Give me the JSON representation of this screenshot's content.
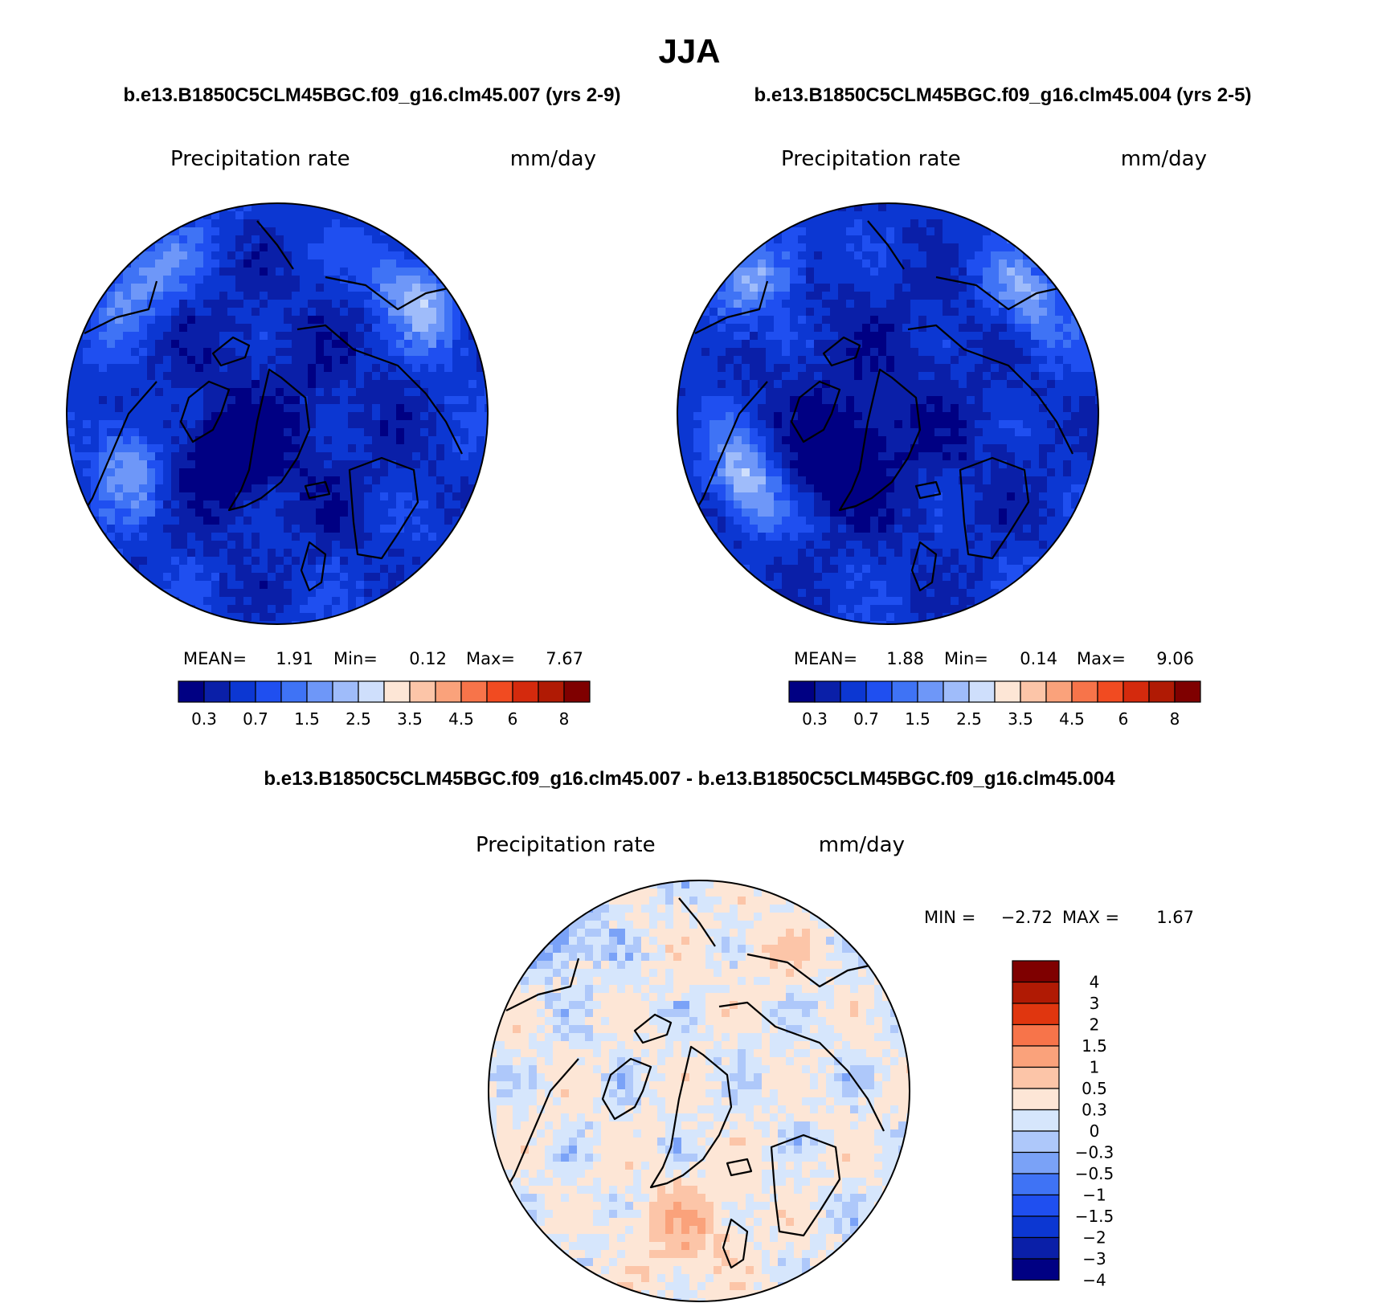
{
  "title": "JJA",
  "panels": [
    {
      "case_title": "b.e13.B1850C5CLM45BGC.f09_g16.clm45.007 (yrs 2-9)",
      "variable": "Precipitation  rate",
      "units": "mm/day",
      "stats": {
        "mean_label": "MEAN=",
        "mean": "1.91",
        "min_label": "Min=",
        "min": "0.12",
        "max_label": "Max=",
        "max": "7.67"
      },
      "field": {
        "pole": 0.5,
        "trend": 0.32,
        "noise": 0.55,
        "seed": 3,
        "hot": [
          {
            "a": 135,
            "r": 0.88,
            "v": 3.2
          },
          {
            "a": 40,
            "r": 0.85,
            "v": 4.5
          },
          {
            "a": 200,
            "r": 0.75,
            "v": 3.4
          }
        ]
      }
    },
    {
      "case_title": "b.e13.B1850C5CLM45BGC.f09_g16.clm45.004 (yrs 2-5)",
      "variable": "Precipitation  rate",
      "units": "mm/day",
      "stats": {
        "mean_label": "MEAN=",
        "mean": "1.88",
        "min_label": "Min=",
        "min": "0.14",
        "max_label": "Max=",
        "max": "9.06"
      },
      "field": {
        "pole": 0.45,
        "trend": 0.3,
        "noise": 0.55,
        "seed": 11,
        "hot": [
          {
            "a": 135,
            "r": 0.88,
            "v": 3.4
          },
          {
            "a": 40,
            "r": 0.85,
            "v": 3.6
          },
          {
            "a": 205,
            "r": 0.75,
            "v": 4.8
          }
        ]
      }
    }
  ],
  "abs_colorbar": {
    "colors": [
      "#000083",
      "#0a1fa8",
      "#0c37d2",
      "#1f4ff0",
      "#3f73f5",
      "#6e97f8",
      "#9fbcfa",
      "#cfdffc",
      "#fde6d6",
      "#fcc5a8",
      "#faa27b",
      "#f7744a",
      "#f14b21",
      "#d42a0d",
      "#b01a04",
      "#7f0000"
    ],
    "tick_labels": [
      "0.3",
      "0.7",
      "1.5",
      "2.5",
      "3.5",
      "4.5",
      "6",
      "8"
    ]
  },
  "diff_panel": {
    "case_title": "b.e13.B1850C5CLM45BGC.f09_g16.clm45.007 - b.e13.B1850C5CLM45BGC.f09_g16.clm45.004",
    "variable": "Precipitation  rate",
    "units": "mm/day",
    "stats": {
      "min_label": "MIN =",
      "min": "−2.72",
      "max_label": "MAX =",
      "max": "1.67"
    },
    "field": {
      "seed": 21
    },
    "colorbar": {
      "colors": [
        "#7f0000",
        "#b01a04",
        "#e0360f",
        "#f7744a",
        "#faa27b",
        "#fcc5a8",
        "#fde6d6",
        "#d6e6fc",
        "#aec8fa",
        "#7aa2f7",
        "#3f73f5",
        "#1f4ff0",
        "#0c37d2",
        "#0a1fa8",
        "#000083"
      ],
      "tick_labels": [
        "4",
        "3",
        "2",
        "1.5",
        "1",
        "0.5",
        "0.3",
        "0",
        "−0.3",
        "−0.5",
        "−1",
        "−1.5",
        "−2",
        "−3",
        "−4"
      ]
    }
  }
}
